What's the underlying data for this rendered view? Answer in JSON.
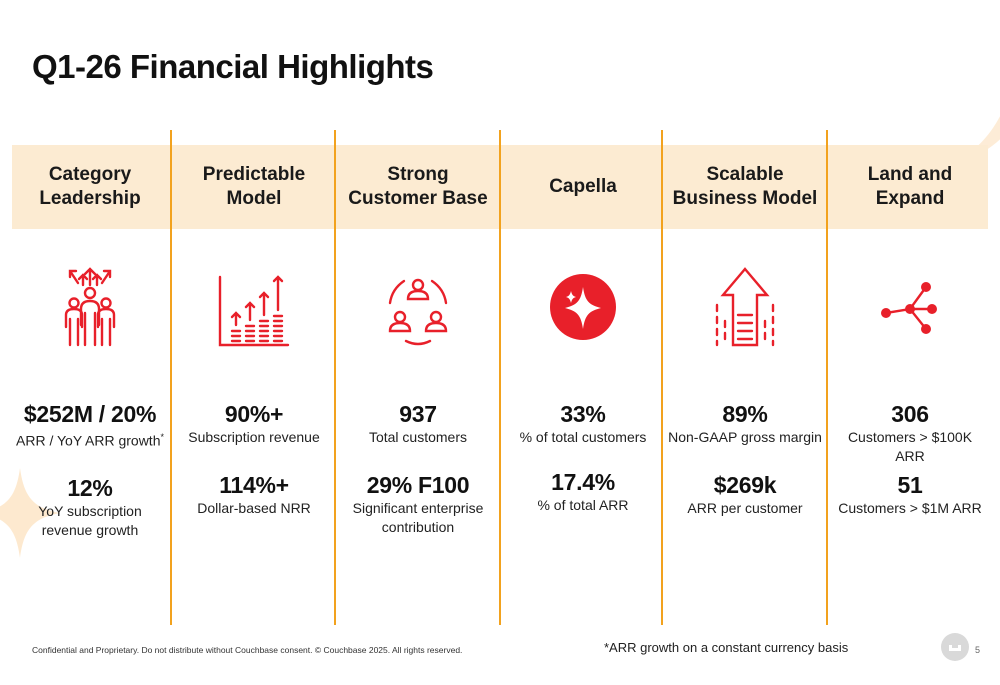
{
  "title": "Q1-26 Financial Highlights",
  "columns": [
    {
      "heading": "Category Leadership",
      "icon": "team-growth-icon",
      "metrics": [
        {
          "value": "$252M / 20%",
          "label": "ARR / YoY ARR growth",
          "note": "*"
        },
        {
          "value": "12%",
          "label": "YoY subscription revenue growth"
        }
      ]
    },
    {
      "heading": "Predictable Model",
      "icon": "bar-chart-growth-icon",
      "metrics": [
        {
          "value": "90%+",
          "label": "Subscription revenue"
        },
        {
          "value": "114%+",
          "label": "Dollar-based NRR"
        }
      ]
    },
    {
      "heading": "Strong Customer Base",
      "icon": "customer-network-icon",
      "metrics": [
        {
          "value": "937",
          "label": "Total customers"
        },
        {
          "value": "29% F100",
          "label": "Significant enterprise contribution"
        }
      ]
    },
    {
      "heading": "Capella",
      "icon": "capella-sparkle-icon",
      "metrics": [
        {
          "value": "33%",
          "label": "% of total customers"
        },
        {
          "value": "17.4%",
          "label": "% of total ARR"
        }
      ]
    },
    {
      "heading": "Scalable Business Model",
      "icon": "scaling-arrow-icon",
      "metrics": [
        {
          "value": "89%",
          "label": "Non-GAAP gross margin"
        },
        {
          "value": "$269k",
          "label": "ARR per customer"
        }
      ]
    },
    {
      "heading": "Land and Expand",
      "icon": "branching-nodes-icon",
      "metrics": [
        {
          "value": "306",
          "label": "Customers > $100K ARR"
        },
        {
          "value": "51",
          "label": "Customers > $1M ARR"
        }
      ]
    }
  ],
  "footer": {
    "confidential": "Confidential and Proprietary. Do not distribute without Couchbase consent. © Couchbase 2025. All rights reserved.",
    "footnote": "*ARR growth on a constant currency basis",
    "page_number": "5"
  },
  "colors": {
    "accent_red": "#e8202a",
    "divider_orange": "#f2a21e",
    "band_peach": "#fcebd2"
  }
}
